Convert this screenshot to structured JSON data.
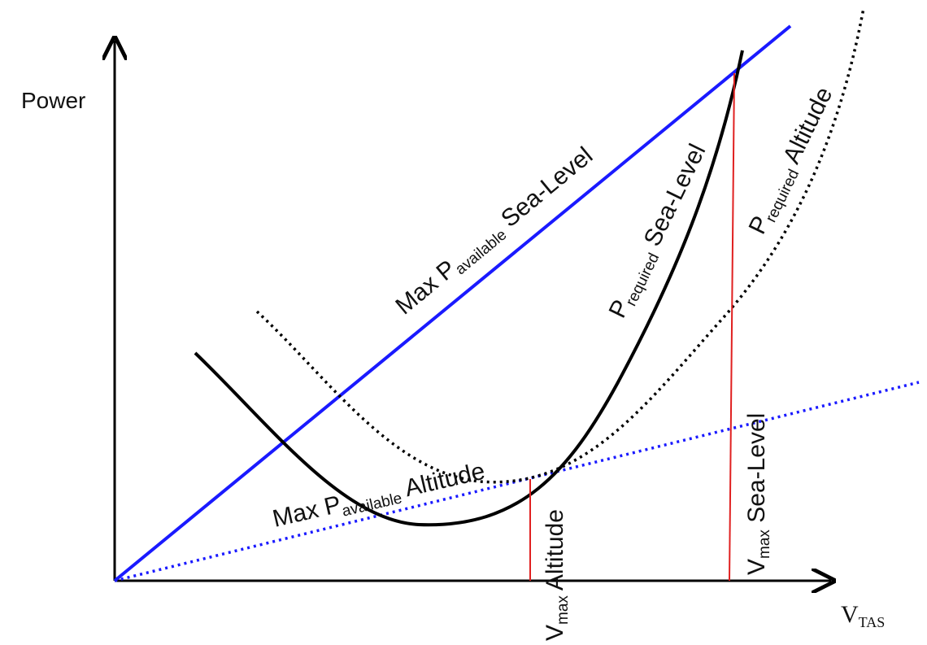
{
  "axes": {
    "y_label": "Power",
    "x_label_main": "V",
    "x_label_sub": "TAS"
  },
  "labels": {
    "max_pa_sl": {
      "pre": "Max P",
      "sub": "available",
      "post": " Sea-Level"
    },
    "max_pa_alt": {
      "pre": "Max P",
      "sub": "available",
      "post": " Altitude"
    },
    "pr_sl": {
      "pre": "P",
      "sub": "required",
      "post": " Sea-Level"
    },
    "pr_alt": {
      "pre": "P",
      "sub": "required",
      "post": " Altitude"
    },
    "vmax_alt": {
      "pre": "V",
      "sub": "max",
      "post": "Altitude"
    },
    "vmax_sl": {
      "pre": "V",
      "sub": "max",
      "post": " Sea-Level"
    }
  },
  "colors": {
    "available_line": "#1a1aff",
    "required_curve": "#000000",
    "vmax_marker": "#e02020",
    "axis": "#000000"
  }
}
